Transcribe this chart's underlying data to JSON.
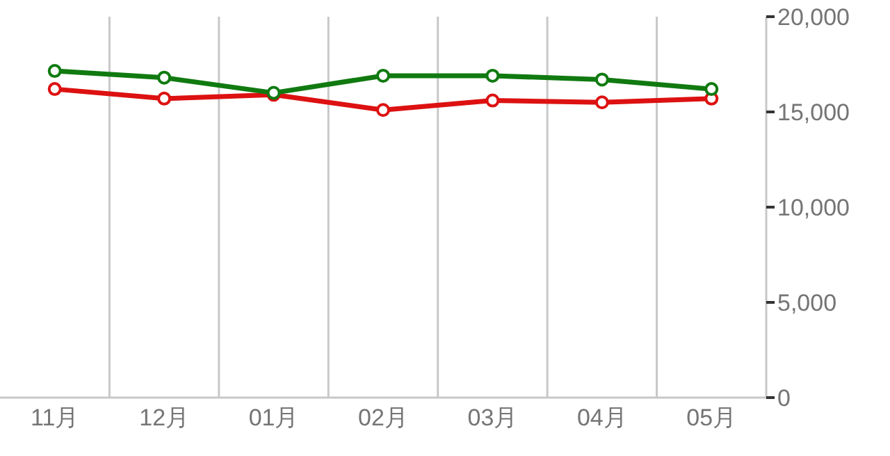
{
  "chart_data": {
    "type": "line",
    "categories": [
      "11月",
      "12月",
      "01月",
      "02月",
      "03月",
      "04月",
      "05月"
    ],
    "series": [
      {
        "color": "#107a10",
        "values": [
          17150,
          16800,
          16000,
          16900,
          16900,
          16700,
          16200
        ]
      },
      {
        "color": "#dd1111",
        "values": [
          16200,
          15700,
          15900,
          15100,
          15600,
          15500,
          15700
        ]
      }
    ],
    "ylim": [
      0,
      20000
    ],
    "yticks": [
      {
        "value": 0,
        "label": "0"
      },
      {
        "value": 5000,
        "label": "5,000"
      },
      {
        "value": 10000,
        "label": "10,000"
      },
      {
        "value": 15000,
        "label": "15,000"
      },
      {
        "value": 20000,
        "label": "20,000"
      }
    ],
    "grid": "x",
    "marker": "circle",
    "line_style": "solid",
    "legend": false
  }
}
